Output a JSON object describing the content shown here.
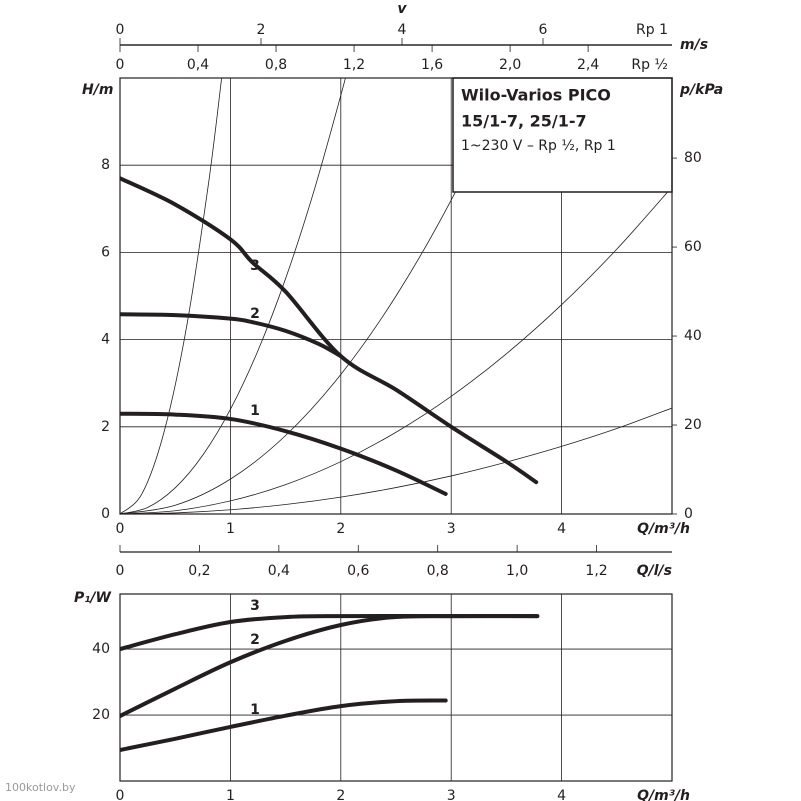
{
  "watermark": "100kotlov.by",
  "chart_data": [
    {
      "type": "line",
      "title": "Wilo-Varios PICO",
      "subtitle": "15/1-7, 25/1-7",
      "note": "1~230 V – Rp ½, Rp 1",
      "x_label": "Q/m³/h",
      "y_label": "H/m",
      "y2_label": "p/kPa",
      "xlim": [
        0,
        5
      ],
      "xticks": [
        0,
        1,
        2,
        3,
        4
      ],
      "ylim": [
        0,
        10
      ],
      "yticks": [
        0,
        2,
        4,
        6,
        8
      ],
      "y2lim": [
        0,
        98
      ],
      "y2ticks": [
        0,
        20,
        40,
        60,
        80
      ],
      "grid": true,
      "top_axis_title": "v",
      "top_axis_unit": "m/s",
      "top_axes": [
        {
          "label": "Rp 1",
          "xlim": [
            0,
            7.83
          ],
          "xticks": [
            0,
            2,
            4,
            6
          ]
        },
        {
          "label": "Rp ½",
          "xlim": [
            0,
            2.83
          ],
          "xticks": [
            0,
            {
              "value": 0.4,
              "label": "0,4"
            },
            {
              "value": 0.8,
              "label": "0,8"
            },
            {
              "value": 1.2,
              "label": "1,2"
            },
            {
              "value": 1.6,
              "label": "1,6"
            },
            {
              "value": 2.0,
              "label": "2,0"
            },
            {
              "value": 2.4,
              "label": "2,4"
            }
          ]
        }
      ],
      "series": [
        {
          "name": "3",
          "color": "#231f20",
          "x": [
            0,
            0.5,
            1,
            1.2,
            1.5,
            2,
            2.5,
            3,
            3.5,
            3.77
          ],
          "values": [
            7.7,
            7.1,
            6.3,
            5.77,
            5.1,
            3.62,
            2.85,
            2.0,
            1.2,
            0.73
          ]
        },
        {
          "name": "2",
          "color": "#231f20",
          "x": [
            0,
            0.5,
            1,
            1.2,
            1.5,
            1.8,
            2
          ],
          "values": [
            4.58,
            4.56,
            4.48,
            4.4,
            4.2,
            3.9,
            3.62
          ]
        },
        {
          "name": "1",
          "color": "#231f20",
          "x": [
            0,
            0.5,
            1,
            1.5,
            2,
            2.5,
            2.95
          ],
          "values": [
            2.3,
            2.28,
            2.18,
            1.9,
            1.5,
            1.0,
            0.46
          ]
        }
      ],
      "system_curves": [
        {
          "color": "#231f20",
          "x": [
            0,
            0.2,
            0.4,
            0.6,
            0.8,
            0.92,
            0.95
          ],
          "values": [
            0,
            0.47,
            1.89,
            4.25,
            7.55,
            9.99,
            10.65
          ]
        },
        {
          "color": "#231f20",
          "x": [
            0,
            0.25,
            0.5,
            0.75,
            1,
            1.25,
            1.5,
            1.75,
            2,
            2.1
          ],
          "values": [
            0,
            0.15,
            0.6,
            1.35,
            2.4,
            3.75,
            5.4,
            7.35,
            9.6,
            10.58
          ]
        },
        {
          "color": "#231f20",
          "x": [
            0,
            0.5,
            1,
            1.5,
            2,
            2.5,
            3,
            3.5,
            3.6
          ],
          "values": [
            0,
            0.2,
            0.8,
            1.8,
            3.2,
            5,
            7.2,
            9.8,
            10.37
          ]
        },
        {
          "color": "#231f20",
          "x": [
            0,
            0.5,
            1,
            1.5,
            2,
            2.5,
            3,
            3.5,
            4,
            4.5,
            5
          ],
          "values": [
            0,
            0.075,
            0.3,
            0.675,
            1.2,
            1.875,
            2.7,
            3.675,
            4.8,
            6.075,
            7.5
          ]
        },
        {
          "color": "#231f20",
          "x": [
            0,
            0.5,
            1,
            1.5,
            2,
            2.5,
            3,
            3.5,
            4,
            4.5,
            5
          ],
          "values": [
            0,
            0.024,
            0.097,
            0.218,
            0.388,
            0.606,
            0.873,
            1.19,
            1.55,
            1.96,
            2.43
          ]
        }
      ]
    },
    {
      "type": "line",
      "x_label": "Q/m³/h",
      "y_label": "P₁/W",
      "xlim": [
        0,
        5
      ],
      "xticks": [
        0,
        1,
        2,
        3,
        4
      ],
      "ylim": [
        0,
        56.7
      ],
      "yticks": [
        20,
        40
      ],
      "grid": true,
      "top_axes": [
        {
          "label": "Q/l/s",
          "xlim": [
            0,
            1.39
          ],
          "xticks": [
            0,
            {
              "value": 0.2,
              "label": "0,2"
            },
            {
              "value": 0.4,
              "label": "0,4"
            },
            {
              "value": 0.6,
              "label": "0,6"
            },
            {
              "value": 0.8,
              "label": "0,8"
            },
            {
              "value": 1.0,
              "label": "1,0"
            },
            {
              "value": 1.2,
              "label": "1,2"
            }
          ]
        }
      ],
      "series": [
        {
          "name": "3",
          "color": "#231f20",
          "x": [
            0,
            0.5,
            1,
            1.5,
            2,
            3,
            3.78
          ],
          "values": [
            40,
            44.5,
            48.2,
            49.7,
            50,
            50,
            50
          ]
        },
        {
          "name": "2",
          "color": "#231f20",
          "x": [
            0,
            0.5,
            1,
            1.5,
            2,
            2.45,
            3,
            3.78
          ],
          "values": [
            19.7,
            28,
            36,
            42.5,
            47.3,
            49.6,
            50,
            50
          ]
        },
        {
          "name": "1",
          "color": "#231f20",
          "x": [
            0,
            0.5,
            1,
            1.5,
            2,
            2.5,
            2.95
          ],
          "values": [
            9.4,
            12.8,
            16.4,
            19.8,
            22.7,
            24.2,
            24.4
          ]
        }
      ]
    }
  ]
}
